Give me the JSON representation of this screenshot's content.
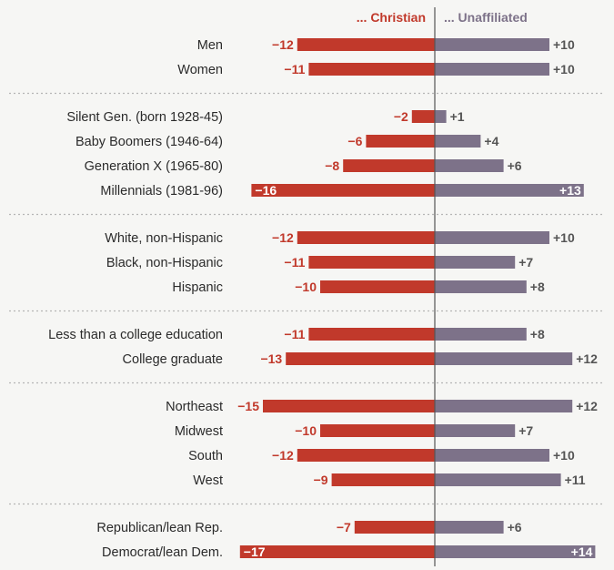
{
  "chart_data": {
    "type": "bar",
    "layout": "diverging-horizontal",
    "series": [
      {
        "name": "... Christian",
        "color": "#c1392b"
      },
      {
        "name": "... Unaffiliated",
        "color": "#7d7289"
      }
    ],
    "groups": [
      {
        "rows": [
          {
            "label": "Men",
            "christian": -12,
            "christian_label": "−12",
            "unaffiliated": 10,
            "unaffiliated_label": "+10"
          },
          {
            "label": "Women",
            "christian": -11,
            "christian_label": "−11",
            "unaffiliated": 10,
            "unaffiliated_label": "+10"
          }
        ]
      },
      {
        "rows": [
          {
            "label": "Silent Gen. (born 1928-45)",
            "christian": -2,
            "christian_label": "−2",
            "unaffiliated": 1,
            "unaffiliated_label": "+1"
          },
          {
            "label": "Baby Boomers (1946-64)",
            "christian": -6,
            "christian_label": "−6",
            "unaffiliated": 4,
            "unaffiliated_label": "+4"
          },
          {
            "label": "Generation X (1965-80)",
            "christian": -8,
            "christian_label": "−8",
            "unaffiliated": 6,
            "unaffiliated_label": "+6"
          },
          {
            "label": "Millennials (1981-96)",
            "christian": -16,
            "christian_label": "−16",
            "unaffiliated": 13,
            "unaffiliated_label": "+13"
          }
        ]
      },
      {
        "rows": [
          {
            "label": "White, non-Hispanic",
            "christian": -12,
            "christian_label": "−12",
            "unaffiliated": 10,
            "unaffiliated_label": "+10"
          },
          {
            "label": "Black, non-Hispanic",
            "christian": -11,
            "christian_label": "−11",
            "unaffiliated": 7,
            "unaffiliated_label": "+7"
          },
          {
            "label": "Hispanic",
            "christian": -10,
            "christian_label": "−10",
            "unaffiliated": 8,
            "unaffiliated_label": "+8"
          }
        ]
      },
      {
        "rows": [
          {
            "label": "Less than a college education",
            "christian": -11,
            "christian_label": "−11",
            "unaffiliated": 8,
            "unaffiliated_label": "+8"
          },
          {
            "label": "College graduate",
            "christian": -13,
            "christian_label": "−13",
            "unaffiliated": 12,
            "unaffiliated_label": "+12"
          }
        ]
      },
      {
        "rows": [
          {
            "label": "Northeast",
            "christian": -15,
            "christian_label": "−15",
            "unaffiliated": 12,
            "unaffiliated_label": "+12"
          },
          {
            "label": "Midwest",
            "christian": -10,
            "christian_label": "−10",
            "unaffiliated": 7,
            "unaffiliated_label": "+7"
          },
          {
            "label": "South",
            "christian": -12,
            "christian_label": "−12",
            "unaffiliated": 10,
            "unaffiliated_label": "+10"
          },
          {
            "label": "West",
            "christian": -9,
            "christian_label": "−9",
            "unaffiliated": 11,
            "unaffiliated_label": "+11"
          }
        ]
      },
      {
        "rows": [
          {
            "label": "Republican/lean Rep.",
            "christian": -7,
            "christian_label": "−7",
            "unaffiliated": 6,
            "unaffiliated_label": "+6"
          },
          {
            "label": "Democrat/lean Dem.",
            "christian": -17,
            "christian_label": "−17",
            "unaffiliated": 14,
            "unaffiliated_label": "+14"
          }
        ]
      }
    ],
    "grid": false,
    "legend": "top-center",
    "colors": {
      "christian": "#c1392b",
      "unaffiliated": "#7d7289",
      "label_inside": "#ffffff",
      "text": "#2b2b2b",
      "axis": "#555555",
      "divider": "#b5b5b5"
    }
  }
}
